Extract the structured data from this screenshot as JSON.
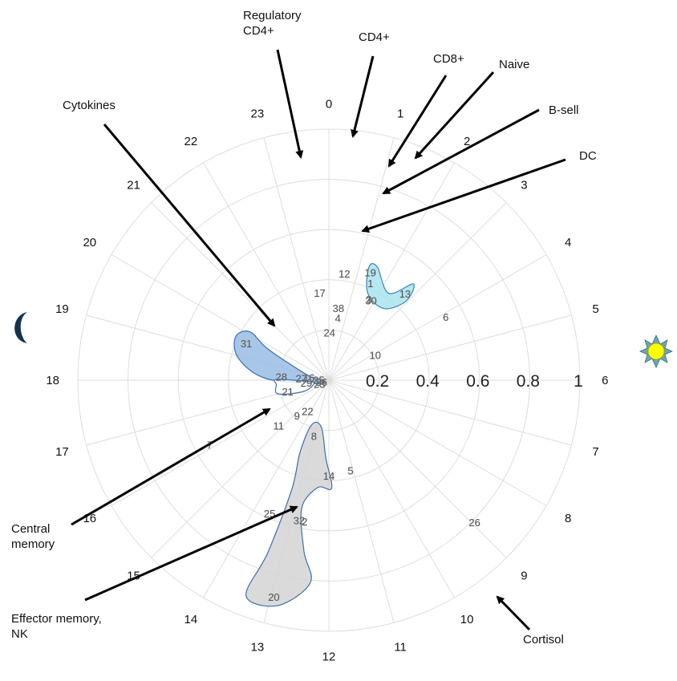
{
  "chart_data": {
    "type": "scatter",
    "subtype": "polar-clock",
    "angular_axis": {
      "unit": "hour",
      "ticks": [
        "0",
        "1",
        "2",
        "3",
        "4",
        "5",
        "6",
        "7",
        "8",
        "9",
        "10",
        "11",
        "12",
        "13",
        "14",
        "15",
        "16",
        "17",
        "18",
        "19",
        "20",
        "21",
        "22",
        "23"
      ]
    },
    "radial_axis": {
      "range": [
        0,
        1
      ],
      "ticks": [
        "0.2",
        "0.4",
        "0.6",
        "0.8",
        "1"
      ],
      "grid": true
    },
    "points": [
      {
        "label": "12",
        "hour": 0.55,
        "r": 0.43
      },
      {
        "label": "17",
        "hour": 23.6,
        "r": 0.35
      },
      {
        "label": "19",
        "hour": 1.4,
        "r": 0.46
      },
      {
        "label": "1",
        "hour": 1.55,
        "r": 0.42
      },
      {
        "label": "30",
        "hour": 1.85,
        "r": 0.36
      },
      {
        "label": "3",
        "hour": 1.75,
        "r": 0.36
      },
      {
        "label": "13",
        "hour": 2.75,
        "r": 0.46
      },
      {
        "label": "38",
        "hour": 0.5,
        "r": 0.29
      },
      {
        "label": "4",
        "hour": 0.55,
        "r": 0.25
      },
      {
        "label": "24",
        "hour": 0.05,
        "r": 0.19
      },
      {
        "label": "6",
        "hour": 4.1,
        "r": 0.53
      },
      {
        "label": "10",
        "hour": 4.1,
        "r": 0.21
      },
      {
        "label": "31",
        "hour": 19.6,
        "r": 0.36
      },
      {
        "label": "28",
        "hour": 18.3,
        "r": 0.19
      },
      {
        "label": "27",
        "hour": 18.3,
        "r": 0.11
      },
      {
        "label": "16",
        "hour": 18.5,
        "r": 0.08
      },
      {
        "label": "35",
        "hour": 18.2,
        "r": 0.04
      },
      {
        "label": "36",
        "hour": 17.2,
        "r": 0.03
      },
      {
        "label": "21",
        "hour": 17.0,
        "r": 0.17
      },
      {
        "label": "29",
        "hour": 17.6,
        "r": 0.09
      },
      {
        "label": "23",
        "hour": 16.6,
        "r": 0.04
      },
      {
        "label": "22",
        "hour": 14.3,
        "r": 0.15
      },
      {
        "label": "9",
        "hour": 14.8,
        "r": 0.19
      },
      {
        "label": "11",
        "hour": 15.2,
        "r": 0.27
      },
      {
        "label": "8",
        "hour": 13.0,
        "r": 0.23
      },
      {
        "label": "7",
        "hour": 16.1,
        "r": 0.54
      },
      {
        "label": "14",
        "hour": 12.0,
        "r": 0.38
      },
      {
        "label": "5",
        "hour": 11.1,
        "r": 0.37
      },
      {
        "label": "25",
        "hour": 13.6,
        "r": 0.58
      },
      {
        "label": "32",
        "hour": 12.8,
        "r": 0.57
      },
      {
        "label": "2",
        "hour": 12.65,
        "r": 0.57
      },
      {
        "label": "26",
        "hour": 8.95,
        "r": 0.81
      },
      {
        "label": "20",
        "hour": 12.95,
        "r": 0.89
      }
    ],
    "regions": [
      {
        "color": "#a8e4ee",
        "stroke": "#3b85b8",
        "points": [
          [
            1.3,
            0.48
          ],
          [
            1.55,
            0.49
          ],
          [
            2.3,
            0.42
          ],
          [
            2.75,
            0.51
          ],
          [
            2.95,
            0.44
          ],
          [
            2.5,
            0.36
          ],
          [
            1.6,
            0.38
          ]
        ]
      },
      {
        "color": "#99bde4",
        "stroke": "#3b6eae",
        "points": [
          [
            19.65,
            0.41
          ],
          [
            20.1,
            0.37
          ],
          [
            19.8,
            0.27
          ],
          [
            18.8,
            0.08
          ],
          [
            18.0,
            0.02
          ],
          [
            16.6,
            0.04
          ],
          [
            18.1,
            0.25
          ],
          [
            18.9,
            0.37
          ]
        ]
      },
      {
        "color": "#ffffff",
        "stroke": "#3b6eae",
        "points": [
          [
            18.05,
            0.21
          ],
          [
            17.7,
            0.21
          ],
          [
            17.0,
            0.21
          ],
          [
            16.4,
            0.11
          ],
          [
            17.2,
            0.06
          ],
          [
            17.8,
            0.09
          ]
        ]
      },
      {
        "color": "#d4d4d4",
        "stroke": "#3b6eae",
        "points": [
          [
            13.4,
            0.19
          ],
          [
            12.6,
            0.19
          ],
          [
            12.15,
            0.31
          ],
          [
            11.9,
            0.43
          ],
          [
            12.4,
            0.43
          ],
          [
            12.8,
            0.52
          ],
          [
            12.55,
            0.69
          ],
          [
            12.35,
            0.81
          ],
          [
            12.85,
            0.92
          ],
          [
            13.4,
            0.92
          ],
          [
            13.3,
            0.73
          ],
          [
            13.25,
            0.46
          ],
          [
            13.45,
            0.31
          ]
        ]
      }
    ],
    "annotations": [
      {
        "text": "Regulatory\nCD4+",
        "target": "17"
      },
      {
        "text": "CD4+",
        "target": "12"
      },
      {
        "text": "CD8+",
        "target": "1"
      },
      {
        "text": "Naive",
        "target": "1"
      },
      {
        "text": "B-sell",
        "target": "30"
      },
      {
        "text": "DC",
        "target": "4"
      },
      {
        "text": "Cytokines",
        "target": "31"
      },
      {
        "text": "Central\nmemory",
        "target": "21"
      },
      {
        "text": "Effector memory,\nNK",
        "target": "14"
      },
      {
        "text": "Cortisol",
        "target": "26"
      }
    ],
    "icons": [
      "moon-icon",
      "sun-icon"
    ],
    "colors": {
      "grid": "#dddddd",
      "arrow": "#000000"
    }
  }
}
